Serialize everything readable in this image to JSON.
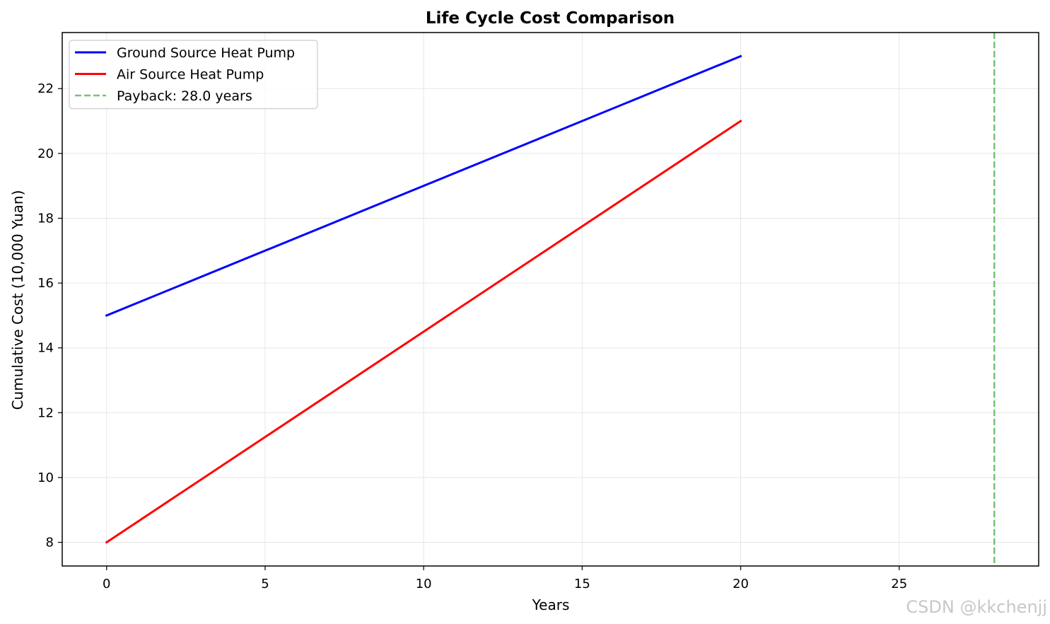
{
  "chart_data": {
    "type": "line",
    "title": "Life Cycle Cost Comparison",
    "xlabel": "Years",
    "ylabel": "Cumulative Cost (10,000 Yuan)",
    "xlim": [
      -1.4,
      29.4
    ],
    "ylim": [
      7.27,
      23.73
    ],
    "x_ticks": [
      0,
      5,
      10,
      15,
      20,
      25
    ],
    "y_ticks": [
      8,
      10,
      12,
      14,
      16,
      18,
      20,
      22
    ],
    "grid": true,
    "legend_position": "top-left",
    "series": [
      {
        "name": "Ground Source Heat Pump",
        "color": "#0000ff",
        "style": "solid",
        "x": [
          0,
          20
        ],
        "y": [
          15,
          23
        ]
      },
      {
        "name": "Air Source Heat Pump",
        "color": "#ff0000",
        "style": "solid",
        "x": [
          0,
          20
        ],
        "y": [
          8,
          21
        ]
      }
    ],
    "vlines": [
      {
        "name": "Payback: 28.0 years",
        "x": 28.0,
        "color": "#73c373",
        "style": "dashed"
      }
    ]
  },
  "watermark": "CSDN @kkchenjj"
}
